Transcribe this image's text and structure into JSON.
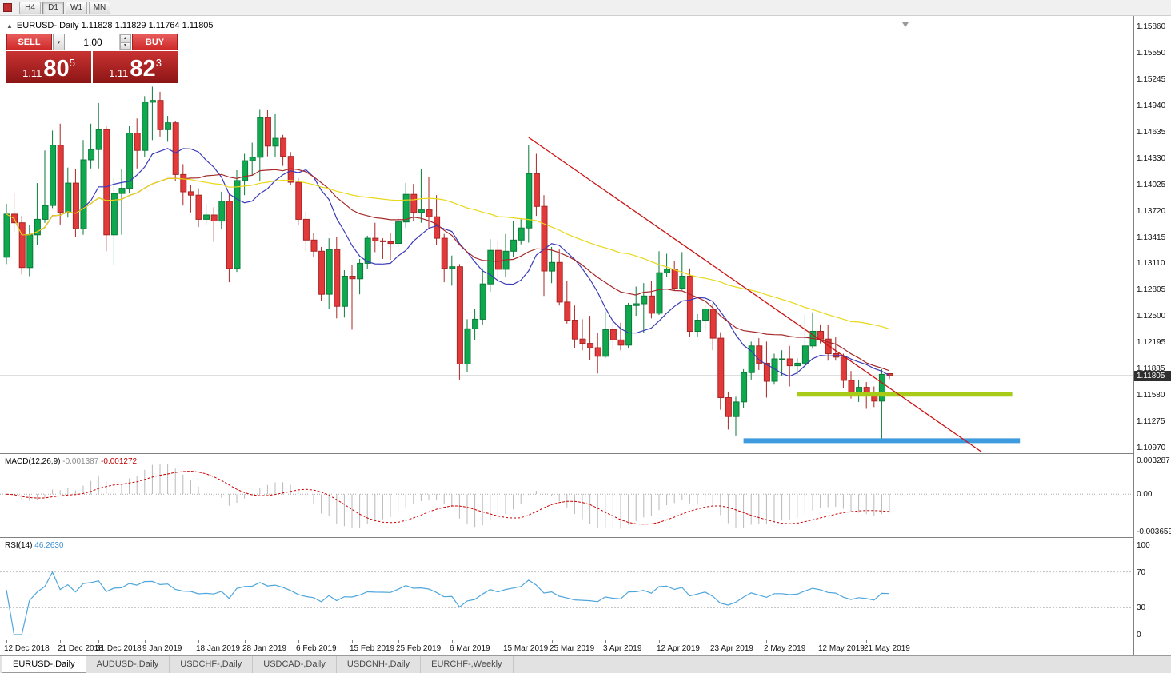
{
  "toolbar": {
    "timeframes": [
      {
        "label": "H4",
        "active": false
      },
      {
        "label": "D1",
        "active": true
      },
      {
        "label": "W1",
        "active": false
      },
      {
        "label": "MN",
        "active": false
      }
    ]
  },
  "chart_header": {
    "ohlc_line": "EURUSD-,Daily  1.11828 1.11829 1.11764 1.11805"
  },
  "trade_panel": {
    "sell_label": "SELL",
    "buy_label": "BUY",
    "volume": "1.00",
    "sell_price": {
      "prefix": "1.11",
      "big": "80",
      "sup": "5"
    },
    "buy_price": {
      "prefix": "1.11",
      "big": "82",
      "sup": "3"
    }
  },
  "price_axis": {
    "labels": [
      "1.15860",
      "1.15550",
      "1.15245",
      "1.14940",
      "1.14635",
      "1.14330",
      "1.14025",
      "1.13720",
      "1.13415",
      "1.13110",
      "1.12805",
      "1.12500",
      "1.12195",
      "1.11885",
      "1.11580",
      "1.11275",
      "1.10970"
    ],
    "current": "1.11805"
  },
  "macd_panel": {
    "title": "MACD(12,26,9)",
    "main_value": "-0.001387",
    "signal_value": "-0.001272",
    "axis_max": "0.003287",
    "axis_zero": "0.00",
    "axis_min": "-0.003659"
  },
  "rsi_panel": {
    "title": "RSI(14)",
    "value": "46.2630",
    "axis": [
      "100",
      "70",
      "30",
      "0"
    ]
  },
  "bottom_tabs": [
    {
      "label": "EURUSD-,Daily",
      "active": true
    },
    {
      "label": "AUDUSD-,Daily",
      "active": false
    },
    {
      "label": "USDCHF-,Daily",
      "active": false
    },
    {
      "label": "USDCAD-,Daily",
      "active": false
    },
    {
      "label": "USDCNH-,Daily",
      "active": false
    },
    {
      "label": "EURCHF-,Weekly",
      "active": false
    }
  ],
  "chart_data": {
    "type": "candlestick",
    "symbol": "EURUSD-",
    "timeframe": "Daily",
    "current_price": 1.11805,
    "price_axis_range": {
      "top": 1.1586,
      "bottom": 1.1097
    },
    "colors": {
      "bull": "#0FA84E",
      "bull_edge": "#0A7A39",
      "bear": "#E23A3A",
      "bear_edge": "#A82525",
      "ma_fast": "#3A3AB8",
      "ma_mid": "#A52A2A",
      "ma_slow": "#E8D818",
      "trendline": "#CC1111",
      "level_green": "#A8CB17",
      "level_blue": "#3E9BDE",
      "macd_hist": "#B8B8B8",
      "macd_signal": "#CC0000",
      "rsi_line": "#4EA6DC",
      "price_line": "#BDBDBD"
    },
    "moving_averages": [
      {
        "period": 10,
        "color_key": "ma_fast"
      },
      {
        "period": 24,
        "color_key": "ma_mid"
      },
      {
        "period": 52,
        "color_key": "ma_slow"
      }
    ],
    "trendline": {
      "i1": 68,
      "p1": 1.1457,
      "i2": 127,
      "p2": 1.1092
    },
    "levels": [
      {
        "name": "resistance-line-green",
        "i1": 103,
        "i2": 131,
        "price": 1.1159,
        "color_key": "level_green",
        "width": 6
      },
      {
        "name": "support-line-blue",
        "i1": 96,
        "i2": 132,
        "price": 1.1105,
        "color_key": "level_blue",
        "width": 6
      }
    ],
    "macd": {
      "fast": 12,
      "slow": 26,
      "signal": 9
    },
    "rsi": {
      "period": 14,
      "levels": [
        70,
        30
      ]
    },
    "x_labels": [
      {
        "i": 0,
        "label": "12 Dec 2018"
      },
      {
        "i": 7,
        "label": "21 Dec 2018"
      },
      {
        "i": 12,
        "label": "31 Dec 2018"
      },
      {
        "i": 18,
        "label": "9 Jan 2019"
      },
      {
        "i": 25,
        "label": "18 Jan 2019"
      },
      {
        "i": 31,
        "label": "28 Jan 2019"
      },
      {
        "i": 38,
        "label": "6 Feb 2019"
      },
      {
        "i": 45,
        "label": "15 Feb 2019"
      },
      {
        "i": 51,
        "label": "25 Feb 2019"
      },
      {
        "i": 58,
        "label": "6 Mar 2019"
      },
      {
        "i": 65,
        "label": "15 Mar 2019"
      },
      {
        "i": 71,
        "label": "25 Mar 2019"
      },
      {
        "i": 78,
        "label": "3 Apr 2019"
      },
      {
        "i": 85,
        "label": "12 Apr 2019"
      },
      {
        "i": 92,
        "label": "23 Apr 2019"
      },
      {
        "i": 99,
        "label": "2 May 2019"
      },
      {
        "i": 106,
        "label": "12 May 2019"
      },
      {
        "i": 112,
        "label": "21 May 2019"
      }
    ],
    "candles": [
      [
        1.1318,
        1.138,
        1.131,
        1.1368
      ],
      [
        1.1368,
        1.1393,
        1.1348,
        1.1358
      ],
      [
        1.1358,
        1.1366,
        1.1298,
        1.1306
      ],
      [
        1.1306,
        1.1355,
        1.1296,
        1.1344
      ],
      [
        1.1344,
        1.1404,
        1.1332,
        1.1362
      ],
      [
        1.1362,
        1.1442,
        1.1358,
        1.1378
      ],
      [
        1.1378,
        1.1465,
        1.1375,
        1.1448
      ],
      [
        1.1448,
        1.1473,
        1.1356,
        1.137
      ],
      [
        1.137,
        1.1422,
        1.1364,
        1.1404
      ],
      [
        1.1404,
        1.142,
        1.1342,
        1.1351
      ],
      [
        1.1351,
        1.1454,
        1.1344,
        1.1431
      ],
      [
        1.1431,
        1.1473,
        1.1421,
        1.1443
      ],
      [
        1.1443,
        1.1497,
        1.1421,
        1.1466
      ],
      [
        1.1466,
        1.147,
        1.1325,
        1.1344
      ],
      [
        1.1344,
        1.141,
        1.1309,
        1.1392
      ],
      [
        1.1392,
        1.142,
        1.1344,
        1.1398
      ],
      [
        1.1398,
        1.147,
        1.1392,
        1.1462
      ],
      [
        1.1462,
        1.1479,
        1.1421,
        1.1442
      ],
      [
        1.1442,
        1.1505,
        1.1434,
        1.1498
      ],
      [
        1.1498,
        1.1516,
        1.1454,
        1.15
      ],
      [
        1.15,
        1.151,
        1.1458,
        1.1466
      ],
      [
        1.1466,
        1.1482,
        1.1452,
        1.1474
      ],
      [
        1.1474,
        1.1476,
        1.1406,
        1.1414
      ],
      [
        1.1414,
        1.1426,
        1.1378,
        1.1394
      ],
      [
        1.1394,
        1.1402,
        1.137,
        1.139
      ],
      [
        1.139,
        1.1398,
        1.1353,
        1.1362
      ],
      [
        1.1362,
        1.138,
        1.1356,
        1.1367
      ],
      [
        1.1367,
        1.1376,
        1.1336,
        1.136
      ],
      [
        1.136,
        1.1394,
        1.1351,
        1.1383
      ],
      [
        1.1383,
        1.1392,
        1.1289,
        1.1305
      ],
      [
        1.1305,
        1.1419,
        1.1301,
        1.1407
      ],
      [
        1.1407,
        1.1438,
        1.139,
        1.143
      ],
      [
        1.143,
        1.1451,
        1.1413,
        1.1434
      ],
      [
        1.1434,
        1.149,
        1.1406,
        1.148
      ],
      [
        1.148,
        1.1489,
        1.1435,
        1.1447
      ],
      [
        1.1447,
        1.1484,
        1.1434,
        1.1456
      ],
      [
        1.1456,
        1.146,
        1.1424,
        1.1435
      ],
      [
        1.1435,
        1.144,
        1.1402,
        1.1405
      ],
      [
        1.1405,
        1.141,
        1.1355,
        1.1362
      ],
      [
        1.1362,
        1.1371,
        1.1325,
        1.1338
      ],
      [
        1.1338,
        1.1346,
        1.1318,
        1.1325
      ],
      [
        1.1325,
        1.133,
        1.1267,
        1.1275
      ],
      [
        1.1275,
        1.134,
        1.1258,
        1.1327
      ],
      [
        1.1327,
        1.1341,
        1.1247,
        1.1261
      ],
      [
        1.1261,
        1.1303,
        1.1248,
        1.1296
      ],
      [
        1.1296,
        1.1309,
        1.1234,
        1.1293
      ],
      [
        1.1293,
        1.1316,
        1.1275,
        1.1311
      ],
      [
        1.1311,
        1.1343,
        1.1304,
        1.134
      ],
      [
        1.134,
        1.1358,
        1.1324,
        1.1337
      ],
      [
        1.1337,
        1.134,
        1.1316,
        1.1336
      ],
      [
        1.1336,
        1.1346,
        1.1315,
        1.1334
      ],
      [
        1.1334,
        1.1364,
        1.133,
        1.1359
      ],
      [
        1.1359,
        1.1404,
        1.1352,
        1.1391
      ],
      [
        1.1391,
        1.1403,
        1.136,
        1.137
      ],
      [
        1.137,
        1.142,
        1.1358,
        1.1373
      ],
      [
        1.1373,
        1.1411,
        1.1352,
        1.1365
      ],
      [
        1.1365,
        1.139,
        1.1332,
        1.134
      ],
      [
        1.134,
        1.1345,
        1.1289,
        1.1305
      ],
      [
        1.1305,
        1.132,
        1.1285,
        1.1307
      ],
      [
        1.1307,
        1.131,
        1.1176,
        1.1194
      ],
      [
        1.1194,
        1.1246,
        1.1185,
        1.1235
      ],
      [
        1.1235,
        1.1258,
        1.1222,
        1.1246
      ],
      [
        1.1246,
        1.1305,
        1.124,
        1.1287
      ],
      [
        1.1287,
        1.1339,
        1.1278,
        1.1326
      ],
      [
        1.1326,
        1.1336,
        1.1294,
        1.1304
      ],
      [
        1.1304,
        1.1345,
        1.1295,
        1.1325
      ],
      [
        1.1325,
        1.136,
        1.1318,
        1.1338
      ],
      [
        1.1338,
        1.1362,
        1.1333,
        1.1352
      ],
      [
        1.1352,
        1.1448,
        1.1335,
        1.1415
      ],
      [
        1.1415,
        1.1438,
        1.1366,
        1.1377
      ],
      [
        1.1377,
        1.139,
        1.1273,
        1.1302
      ],
      [
        1.1302,
        1.133,
        1.1288,
        1.1312
      ],
      [
        1.1312,
        1.1327,
        1.1262,
        1.1266
      ],
      [
        1.1266,
        1.129,
        1.1241,
        1.1245
      ],
      [
        1.1245,
        1.1262,
        1.1213,
        1.1223
      ],
      [
        1.1223,
        1.1246,
        1.121,
        1.1218
      ],
      [
        1.1218,
        1.125,
        1.1199,
        1.1213
      ],
      [
        1.1213,
        1.123,
        1.1183,
        1.1203
      ],
      [
        1.1203,
        1.1255,
        1.1201,
        1.1234
      ],
      [
        1.1234,
        1.1245,
        1.1211,
        1.1222
      ],
      [
        1.1222,
        1.1242,
        1.121,
        1.1216
      ],
      [
        1.1216,
        1.1265,
        1.1212,
        1.1262
      ],
      [
        1.1262,
        1.1284,
        1.125,
        1.1264
      ],
      [
        1.1264,
        1.1288,
        1.123,
        1.1273
      ],
      [
        1.1273,
        1.129,
        1.1247,
        1.1253
      ],
      [
        1.1253,
        1.1325,
        1.1251,
        1.13
      ],
      [
        1.13,
        1.1322,
        1.1295,
        1.1304
      ],
      [
        1.1304,
        1.1314,
        1.1279,
        1.1282
      ],
      [
        1.1282,
        1.1324,
        1.128,
        1.1296
      ],
      [
        1.1296,
        1.1305,
        1.1226,
        1.1232
      ],
      [
        1.1232,
        1.1252,
        1.1226,
        1.1245
      ],
      [
        1.1245,
        1.1262,
        1.1233,
        1.1258
      ],
      [
        1.1258,
        1.1264,
        1.121,
        1.1224
      ],
      [
        1.1224,
        1.1231,
        1.1141,
        1.1155
      ],
      [
        1.1155,
        1.1162,
        1.1118,
        1.1133
      ],
      [
        1.1133,
        1.1156,
        1.1111,
        1.115
      ],
      [
        1.115,
        1.1188,
        1.1143,
        1.1184
      ],
      [
        1.1184,
        1.122,
        1.1176,
        1.1215
      ],
      [
        1.1215,
        1.1224,
        1.1187,
        1.1195
      ],
      [
        1.1195,
        1.122,
        1.1155,
        1.1174
      ],
      [
        1.1174,
        1.1206,
        1.117,
        1.12
      ],
      [
        1.12,
        1.121,
        1.118,
        1.12
      ],
      [
        1.12,
        1.1215,
        1.1168,
        1.1192
      ],
      [
        1.1192,
        1.1201,
        1.1182,
        1.1195
      ],
      [
        1.1195,
        1.1251,
        1.119,
        1.1215
      ],
      [
        1.1215,
        1.1254,
        1.1212,
        1.1232
      ],
      [
        1.1232,
        1.124,
        1.1218,
        1.1223
      ],
      [
        1.1223,
        1.124,
        1.1198,
        1.1206
      ],
      [
        1.1206,
        1.1226,
        1.1198,
        1.1202
      ],
      [
        1.1202,
        1.1206,
        1.1166,
        1.1175
      ],
      [
        1.1175,
        1.1186,
        1.1154,
        1.1158
      ],
      [
        1.1158,
        1.1176,
        1.115,
        1.1167
      ],
      [
        1.1167,
        1.1173,
        1.1142,
        1.1161
      ],
      [
        1.1161,
        1.1168,
        1.1144,
        1.1151
      ],
      [
        1.1151,
        1.1188,
        1.1107,
        1.1182
      ],
      [
        1.11828,
        1.11829,
        1.11764,
        1.11805
      ]
    ]
  }
}
